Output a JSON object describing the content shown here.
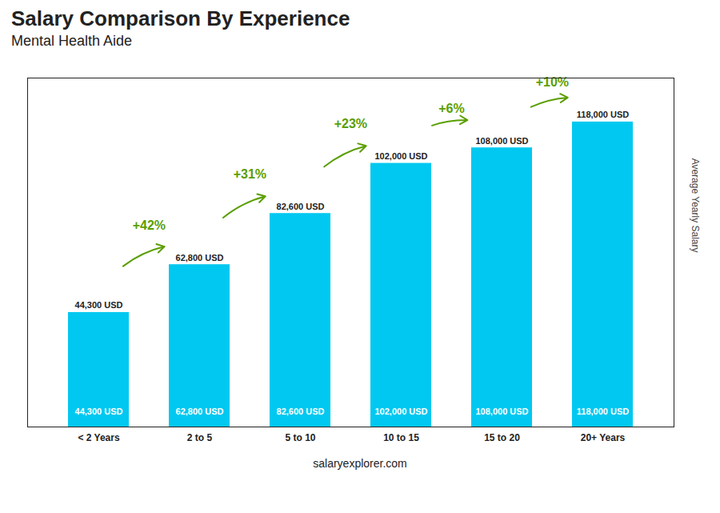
{
  "chart_data": {
    "type": "bar",
    "title": "Salary Comparison By Experience",
    "subtitle": "Mental Health Aide",
    "categories": [
      "< 2 Years",
      "2 to 5",
      "5 to 10",
      "10 to 15",
      "15 to 20",
      "20+ Years"
    ],
    "values": [
      44300,
      62800,
      82600,
      102000,
      108000,
      118000
    ],
    "value_labels": [
      "44,300 USD",
      "62,800 USD",
      "82,600 USD",
      "102,000 USD",
      "108,000 USD",
      "118,000 USD"
    ],
    "data_labels": true,
    "annotations": [
      "+42%",
      "+31%",
      "+23%",
      "+6%",
      "+10%"
    ],
    "ylabel": "Average Yearly Salary",
    "footer": "salaryexplorer.com",
    "ylim": [
      0,
      135000
    ],
    "color": "#00c8f0",
    "tick_labels": "x",
    "grid": false
  }
}
